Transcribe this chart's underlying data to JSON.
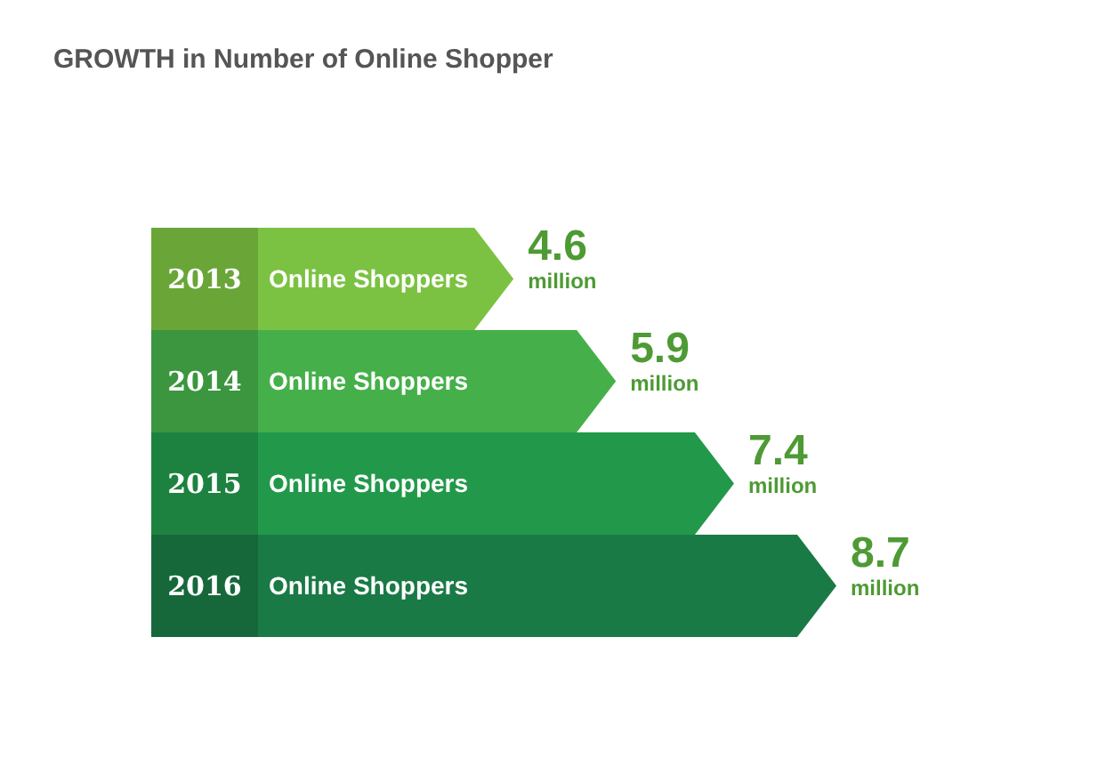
{
  "chart_data": {
    "type": "bar",
    "orientation": "horizontal",
    "title": "GROWTH in Number of Online Shopper",
    "categories": [
      "2013",
      "2014",
      "2015",
      "2016"
    ],
    "series": [
      {
        "name": "Online Shoppers",
        "values": [
          4.6,
          5.9,
          7.4,
          8.7
        ],
        "colors": [
          "#7cc242",
          "#45b04a",
          "#22994a",
          "#1a7a45"
        ],
        "value_labels": [
          "4.6 million",
          "5.9 million",
          "7.4 million",
          "8.7 million"
        ]
      }
    ],
    "legend": false
  }
}
